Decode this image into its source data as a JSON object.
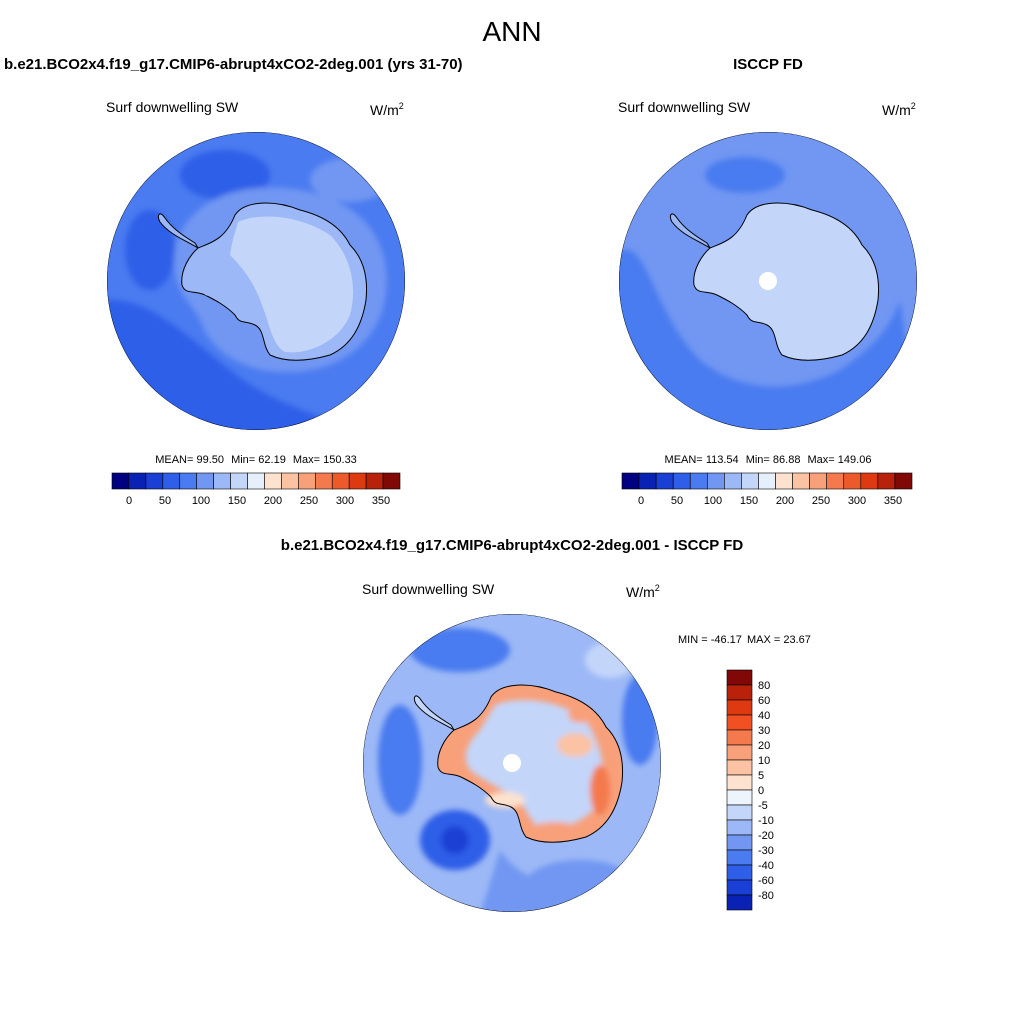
{
  "page_title": "ANN",
  "colors": {
    "land_line": "#000000",
    "background": "#ffffff"
  },
  "chart_data": [
    {
      "type": "heatmap",
      "projection": "south-polar-stereographic",
      "title": "b.e21.BCO2x4.f19_g17.CMIP6-abrupt4xCO2-2deg.001 (yrs 31-70)",
      "variable": "Surf downwelling SW",
      "units_base": "W/m",
      "units_sup": "2",
      "stats": {
        "mean_label": "MEAN=",
        "mean": "99.50",
        "min_label": "Min=",
        "min": "62.19",
        "max_label": "Max=",
        "max": "150.33"
      },
      "levels": [
        "0",
        "50",
        "100",
        "150",
        "200",
        "250",
        "300",
        "350"
      ],
      "colorbar_orientation": "horizontal",
      "colorbar_colors": [
        "#000080",
        "#0a22b4",
        "#1a3fd4",
        "#2f5ee8",
        "#4a7bf0",
        "#7197f2",
        "#9cb8f6",
        "#c3d6fa",
        "#e6f0fc",
        "#fde2cf",
        "#fbc2a3",
        "#f8a07a",
        "#f47a4e",
        "#ec5a2b",
        "#dd3a12",
        "#b8220a",
        "#820808"
      ]
    },
    {
      "type": "heatmap",
      "projection": "south-polar-stereographic",
      "title": "ISCCP FD",
      "variable": "Surf downwelling SW",
      "units_base": "W/m",
      "units_sup": "2",
      "stats": {
        "mean_label": "MEAN=",
        "mean": "113.54",
        "min_label": "Min=",
        "min": "86.88",
        "max_label": "Max=",
        "max": "149.06"
      },
      "levels": [
        "0",
        "50",
        "100",
        "150",
        "200",
        "250",
        "300",
        "350"
      ],
      "colorbar_orientation": "horizontal",
      "colorbar_colors": [
        "#000080",
        "#0a22b4",
        "#1a3fd4",
        "#2f5ee8",
        "#4a7bf0",
        "#7197f2",
        "#9cb8f6",
        "#c3d6fa",
        "#e6f0fc",
        "#fde2cf",
        "#fbc2a3",
        "#f8a07a",
        "#f47a4e",
        "#ec5a2b",
        "#dd3a12",
        "#b8220a",
        "#820808"
      ]
    },
    {
      "type": "heatmap",
      "projection": "south-polar-stereographic",
      "title": "b.e21.BCO2x4.f19_g17.CMIP6-abrupt4xCO2-2deg.001 - ISCCP FD",
      "variable": "Surf downwelling SW",
      "units_base": "W/m",
      "units_sup": "2",
      "stats": {
        "min_label": "MIN =",
        "min": "-46.17",
        "max_label": "MAX =",
        "max": "23.67"
      },
      "levels": [
        "80",
        "60",
        "40",
        "30",
        "20",
        "10",
        "5",
        "0",
        "-5",
        "-10",
        "-20",
        "-30",
        "-40",
        "-60",
        "-80"
      ],
      "colorbar_orientation": "vertical",
      "colorbar_colors": [
        "#820808",
        "#b8220a",
        "#dd3a12",
        "#f05022",
        "#f47a4e",
        "#f8a07a",
        "#fbc2a3",
        "#fde2cf",
        "#eef4fc",
        "#c3d6fa",
        "#9cb8f6",
        "#7197f2",
        "#4a7bf0",
        "#2f5ee8",
        "#1a3fd4",
        "#0a22b4"
      ]
    }
  ]
}
